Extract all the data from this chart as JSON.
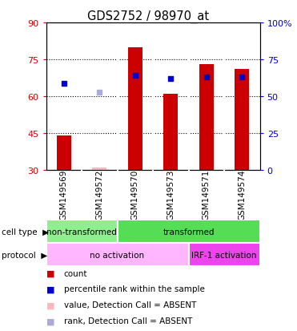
{
  "title": "GDS2752 / 98970_at",
  "samples": [
    "GSM149569",
    "GSM149572",
    "GSM149570",
    "GSM149573",
    "GSM149571",
    "GSM149574"
  ],
  "bar_values": [
    44,
    31,
    80,
    61,
    73,
    71
  ],
  "bar_absent": [
    false,
    true,
    false,
    false,
    false,
    false
  ],
  "percentile_values": [
    59,
    53,
    64,
    62,
    63,
    63
  ],
  "percentile_absent": [
    false,
    true,
    false,
    false,
    false,
    false
  ],
  "ylim_left": [
    30,
    90
  ],
  "ylim_right": [
    0,
    100
  ],
  "y_ticks_left": [
    30,
    45,
    60,
    75,
    90
  ],
  "y_ticks_right": [
    0,
    25,
    50,
    75,
    100
  ],
  "cell_type_groups": [
    {
      "label": "non-transformed",
      "start": 0,
      "end": 2,
      "color": "#90EE90"
    },
    {
      "label": "transformed",
      "start": 2,
      "end": 6,
      "color": "#55DD55"
    }
  ],
  "protocol_groups": [
    {
      "label": "no activation",
      "start": 0,
      "end": 4,
      "color": "#FFB6FF"
    },
    {
      "label": "IRF-1 activation",
      "start": 4,
      "end": 6,
      "color": "#EE44EE"
    }
  ],
  "bar_color": "#CC0000",
  "bar_absent_color": "#FFB6C1",
  "percentile_color": "#0000CC",
  "percentile_absent_color": "#AAAADD",
  "bar_width": 0.4,
  "background_color": "#FFFFFF",
  "left_tick_color": "#CC0000",
  "right_tick_color": "#0000CC",
  "legend_items": [
    {
      "label": "count",
      "color": "#CC0000"
    },
    {
      "label": "percentile rank within the sample",
      "color": "#0000CC"
    },
    {
      "label": "value, Detection Call = ABSENT",
      "color": "#FFB6C1"
    },
    {
      "label": "rank, Detection Call = ABSENT",
      "color": "#AAAADD"
    }
  ],
  "fig_width": 3.71,
  "fig_height": 4.14,
  "dpi": 100
}
